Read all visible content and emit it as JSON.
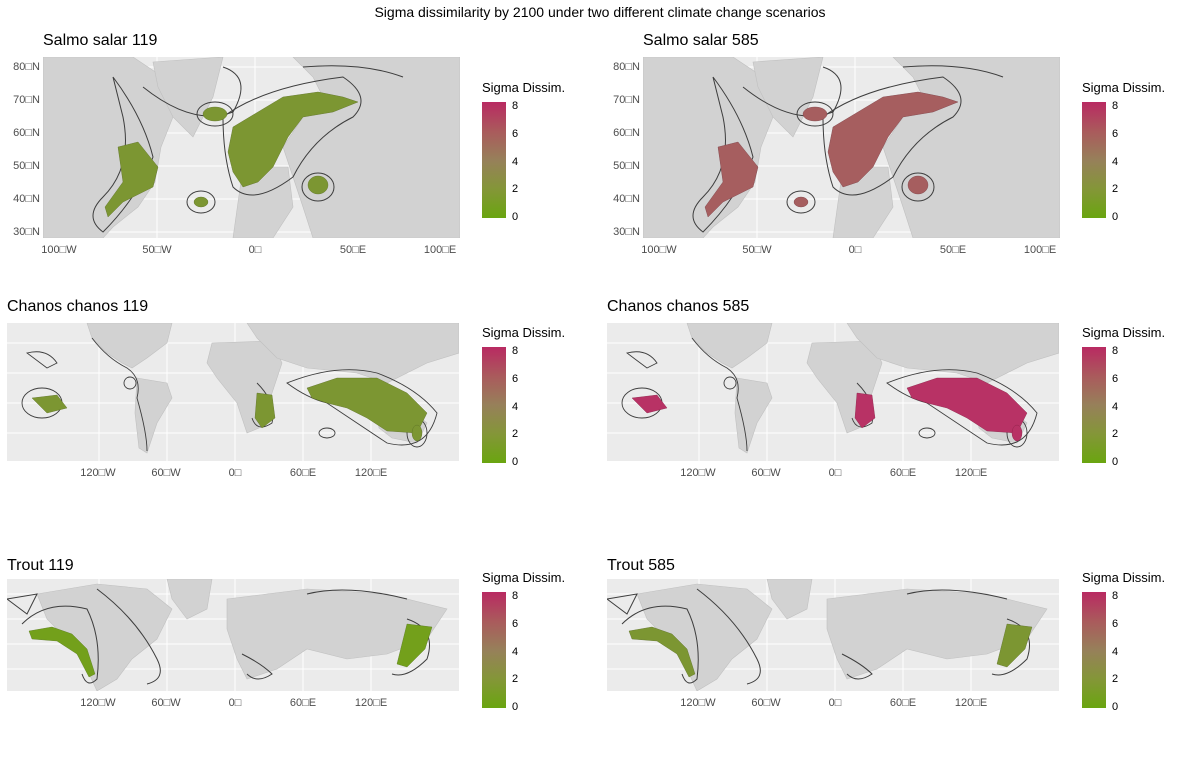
{
  "figure": {
    "title": "Sigma dissimilarity by 2100 under two different climate change scenarios"
  },
  "legend": {
    "title": "Sigma Dissim.",
    "ticks": [
      "8",
      "6",
      "4",
      "2",
      "0"
    ],
    "colors": {
      "low": "#6aa510",
      "mid": "#97805a",
      "high": "#b92a62"
    },
    "range": [
      0,
      8
    ]
  },
  "panels": [
    {
      "title": "Salmo salar 119",
      "map_region": "North Atlantic",
      "y_ticks": [
        "80□N",
        "70□N",
        "60□N",
        "50□N",
        "40□N",
        "30□N"
      ],
      "x_ticks": [
        "100□W",
        "50□W",
        "0□",
        "50□E",
        "100□E"
      ],
      "typical_dissimilarity": 1.5
    },
    {
      "title": "Salmo salar 585",
      "map_region": "North Atlantic",
      "y_ticks": [
        "80□N",
        "70□N",
        "60□N",
        "50□N",
        "40□N",
        "30□N"
      ],
      "x_ticks": [
        "100□W",
        "50□W",
        "0□",
        "50□E",
        "100□E"
      ],
      "typical_dissimilarity": 6
    },
    {
      "title": "Chanos chanos 119",
      "map_region": "World",
      "y_ticks": [],
      "x_ticks": [
        "120□W",
        "60□W",
        "0□",
        "60□E",
        "120□E"
      ],
      "typical_dissimilarity": 1.5
    },
    {
      "title": "Chanos chanos 585",
      "map_region": "World",
      "y_ticks": [],
      "x_ticks": [
        "120□W",
        "60□W",
        "0□",
        "60□E",
        "120□E"
      ],
      "typical_dissimilarity": 7.5
    },
    {
      "title": "Trout 119",
      "map_region": "World",
      "y_ticks": [],
      "x_ticks": [
        "120□W",
        "60□W",
        "0□",
        "60□E",
        "120□E"
      ],
      "typical_dissimilarity": 0.5
    },
    {
      "title": "Trout 585",
      "map_region": "World",
      "y_ticks": [],
      "x_ticks": [
        "120□W",
        "60□W",
        "0□",
        "60□E",
        "120□E"
      ],
      "typical_dissimilarity": 1
    }
  ]
}
